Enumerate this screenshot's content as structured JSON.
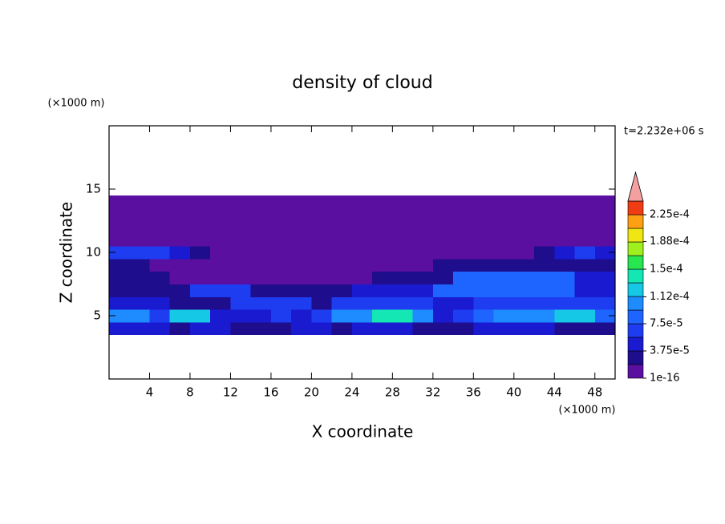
{
  "chart_data": {
    "type": "contour",
    "title": "density of cloud",
    "xlabel": "X coordinate",
    "ylabel": "Z coordinate",
    "xunit": "(×1000 m)",
    "yunit": "(×1000 m)",
    "time_label": "t=2.232e+06 s",
    "xlim": [
      0,
      50
    ],
    "ylim": [
      0,
      20
    ],
    "xticks": [
      4,
      8,
      12,
      16,
      20,
      24,
      28,
      32,
      36,
      40,
      44,
      48
    ],
    "yticks": [
      5,
      10,
      15
    ],
    "x": [
      1,
      3,
      5,
      7,
      9,
      11,
      13,
      15,
      17,
      19,
      21,
      23,
      25,
      27,
      29,
      31,
      33,
      35,
      37,
      39,
      41,
      43,
      45,
      47,
      49
    ],
    "y": [
      4,
      5,
      6,
      7,
      8,
      9,
      10,
      11,
      12,
      13,
      14
    ],
    "z": [
      [
        5e-05,
        5e-05,
        5e-05,
        3e-05,
        5e-05,
        5e-05,
        3e-05,
        3e-05,
        3e-05,
        5e-05,
        5e-05,
        3e-05,
        5e-05,
        5e-05,
        5e-05,
        3e-05,
        3e-05,
        3e-05,
        5e-05,
        5e-05,
        5e-05,
        5e-05,
        3e-05,
        3e-05,
        3e-05
      ],
      [
        0.000105,
        0.000105,
        7e-05,
        0.00012,
        0.00012,
        5e-05,
        5e-05,
        5e-05,
        7e-05,
        5e-05,
        7e-05,
        0.000105,
        0.000105,
        0.00014,
        0.00014,
        0.000105,
        5e-05,
        7e-05,
        8.5e-05,
        0.000105,
        0.000105,
        0.000105,
        0.00012,
        0.00012,
        8.5e-05
      ],
      [
        5e-05,
        5e-05,
        5e-05,
        3e-05,
        3e-05,
        3e-05,
        7e-05,
        7e-05,
        7e-05,
        7e-05,
        3e-05,
        7e-05,
        7e-05,
        7e-05,
        7e-05,
        7e-05,
        5e-05,
        5e-05,
        7e-05,
        7e-05,
        7e-05,
        7e-05,
        7e-05,
        7e-05,
        7e-05
      ],
      [
        3e-05,
        3e-05,
        3e-05,
        3e-05,
        7e-05,
        7e-05,
        7e-05,
        3e-05,
        3e-05,
        3e-05,
        3e-05,
        3e-05,
        5e-05,
        5e-05,
        5e-05,
        5e-05,
        8.5e-05,
        8.5e-05,
        8.5e-05,
        8.5e-05,
        8.5e-05,
        8.5e-05,
        8.5e-05,
        5e-05,
        5e-05
      ],
      [
        3e-05,
        3e-05,
        3e-05,
        1e-05,
        1e-05,
        1e-05,
        1e-05,
        1e-05,
        1e-05,
        1e-05,
        1e-05,
        1e-05,
        1e-05,
        3e-05,
        3e-05,
        3e-05,
        3e-05,
        8.5e-05,
        8.5e-05,
        8.5e-05,
        8.5e-05,
        8.5e-05,
        8.5e-05,
        5e-05,
        5e-05
      ],
      [
        3e-05,
        3e-05,
        1e-05,
        1e-05,
        1e-05,
        1e-05,
        1e-05,
        1e-05,
        1e-05,
        1e-05,
        1e-05,
        1e-05,
        1e-05,
        1e-05,
        1e-05,
        1e-05,
        3e-05,
        3e-05,
        3e-05,
        3e-05,
        3e-05,
        3e-05,
        3e-05,
        3e-05,
        3e-05
      ],
      [
        7e-05,
        7e-05,
        7e-05,
        5e-05,
        3e-05,
        1e-05,
        1e-05,
        1e-05,
        1e-05,
        1e-05,
        1e-05,
        1e-05,
        1e-05,
        1e-05,
        1e-05,
        1e-05,
        1e-05,
        1e-05,
        1e-05,
        1e-05,
        1e-05,
        3e-05,
        5e-05,
        7e-05,
        5e-05
      ],
      [
        1e-05,
        1e-05,
        1e-05,
        1e-05,
        1e-05,
        1e-05,
        1e-05,
        1e-05,
        1e-05,
        1e-05,
        1e-05,
        1e-05,
        1e-05,
        1e-05,
        1e-05,
        1e-05,
        1e-05,
        1e-05,
        1e-05,
        1e-05,
        1e-05,
        1e-05,
        1e-05,
        1e-05,
        1e-05
      ],
      [
        1e-05,
        1e-05,
        1e-05,
        1e-05,
        1e-05,
        1e-05,
        1e-05,
        1e-05,
        1e-05,
        1e-05,
        1e-05,
        1e-05,
        1e-05,
        1e-05,
        1e-05,
        1e-05,
        1e-05,
        1e-05,
        1e-05,
        1e-05,
        1e-05,
        1e-05,
        1e-05,
        1e-05,
        1e-05
      ],
      [
        1e-05,
        1e-05,
        1e-05,
        1e-05,
        1e-05,
        1e-05,
        1e-05,
        1e-05,
        1e-05,
        1e-05,
        1e-05,
        1e-05,
        1e-05,
        1e-05,
        1e-05,
        1e-05,
        1e-05,
        1e-05,
        1e-05,
        1e-05,
        1e-05,
        1e-05,
        1e-05,
        1e-05,
        1e-05
      ],
      [
        1e-05,
        1e-05,
        1e-05,
        1e-05,
        1e-05,
        1e-05,
        1e-05,
        1e-05,
        1e-05,
        1e-05,
        1e-05,
        1e-05,
        1e-05,
        1e-05,
        1e-05,
        1e-05,
        1e-05,
        1e-05,
        1e-05,
        1e-05,
        1e-05,
        1e-05,
        1e-05,
        1e-05,
        1e-05
      ]
    ],
    "levels": [
      1e-16,
      1.875e-05,
      3.75e-05,
      5.625e-05,
      7.5e-05,
      9.375e-05,
      0.0001125,
      0.00013125,
      0.00015,
      0.00016875,
      0.0001875,
      0.00020625,
      0.000225,
      0.00024375
    ],
    "colors": [
      "#5a0fa0",
      "#1e0d8c",
      "#1a1ad0",
      "#1e3cf0",
      "#1e64ff",
      "#1e8cff",
      "#14c8e6",
      "#14e6b4",
      "#28e650",
      "#a0f020",
      "#f0e614",
      "#ffa014",
      "#f03c14"
    ],
    "extend_color": "#f4a0a0",
    "cticks": [
      1e-16,
      {
        "value": 3.75e-05,
        "label": "3.75e-5"
      },
      {
        "value": 7.5e-05,
        "label": "7.5e-5"
      },
      {
        "value": 0.000112,
        "label": "1.12e-4"
      },
      {
        "value": 0.00015,
        "label": "1.5e-4"
      },
      {
        "value": 0.000188,
        "label": "1.88e-4"
      },
      {
        "value": 0.000225,
        "label": "2.25e-4"
      }
    ]
  }
}
